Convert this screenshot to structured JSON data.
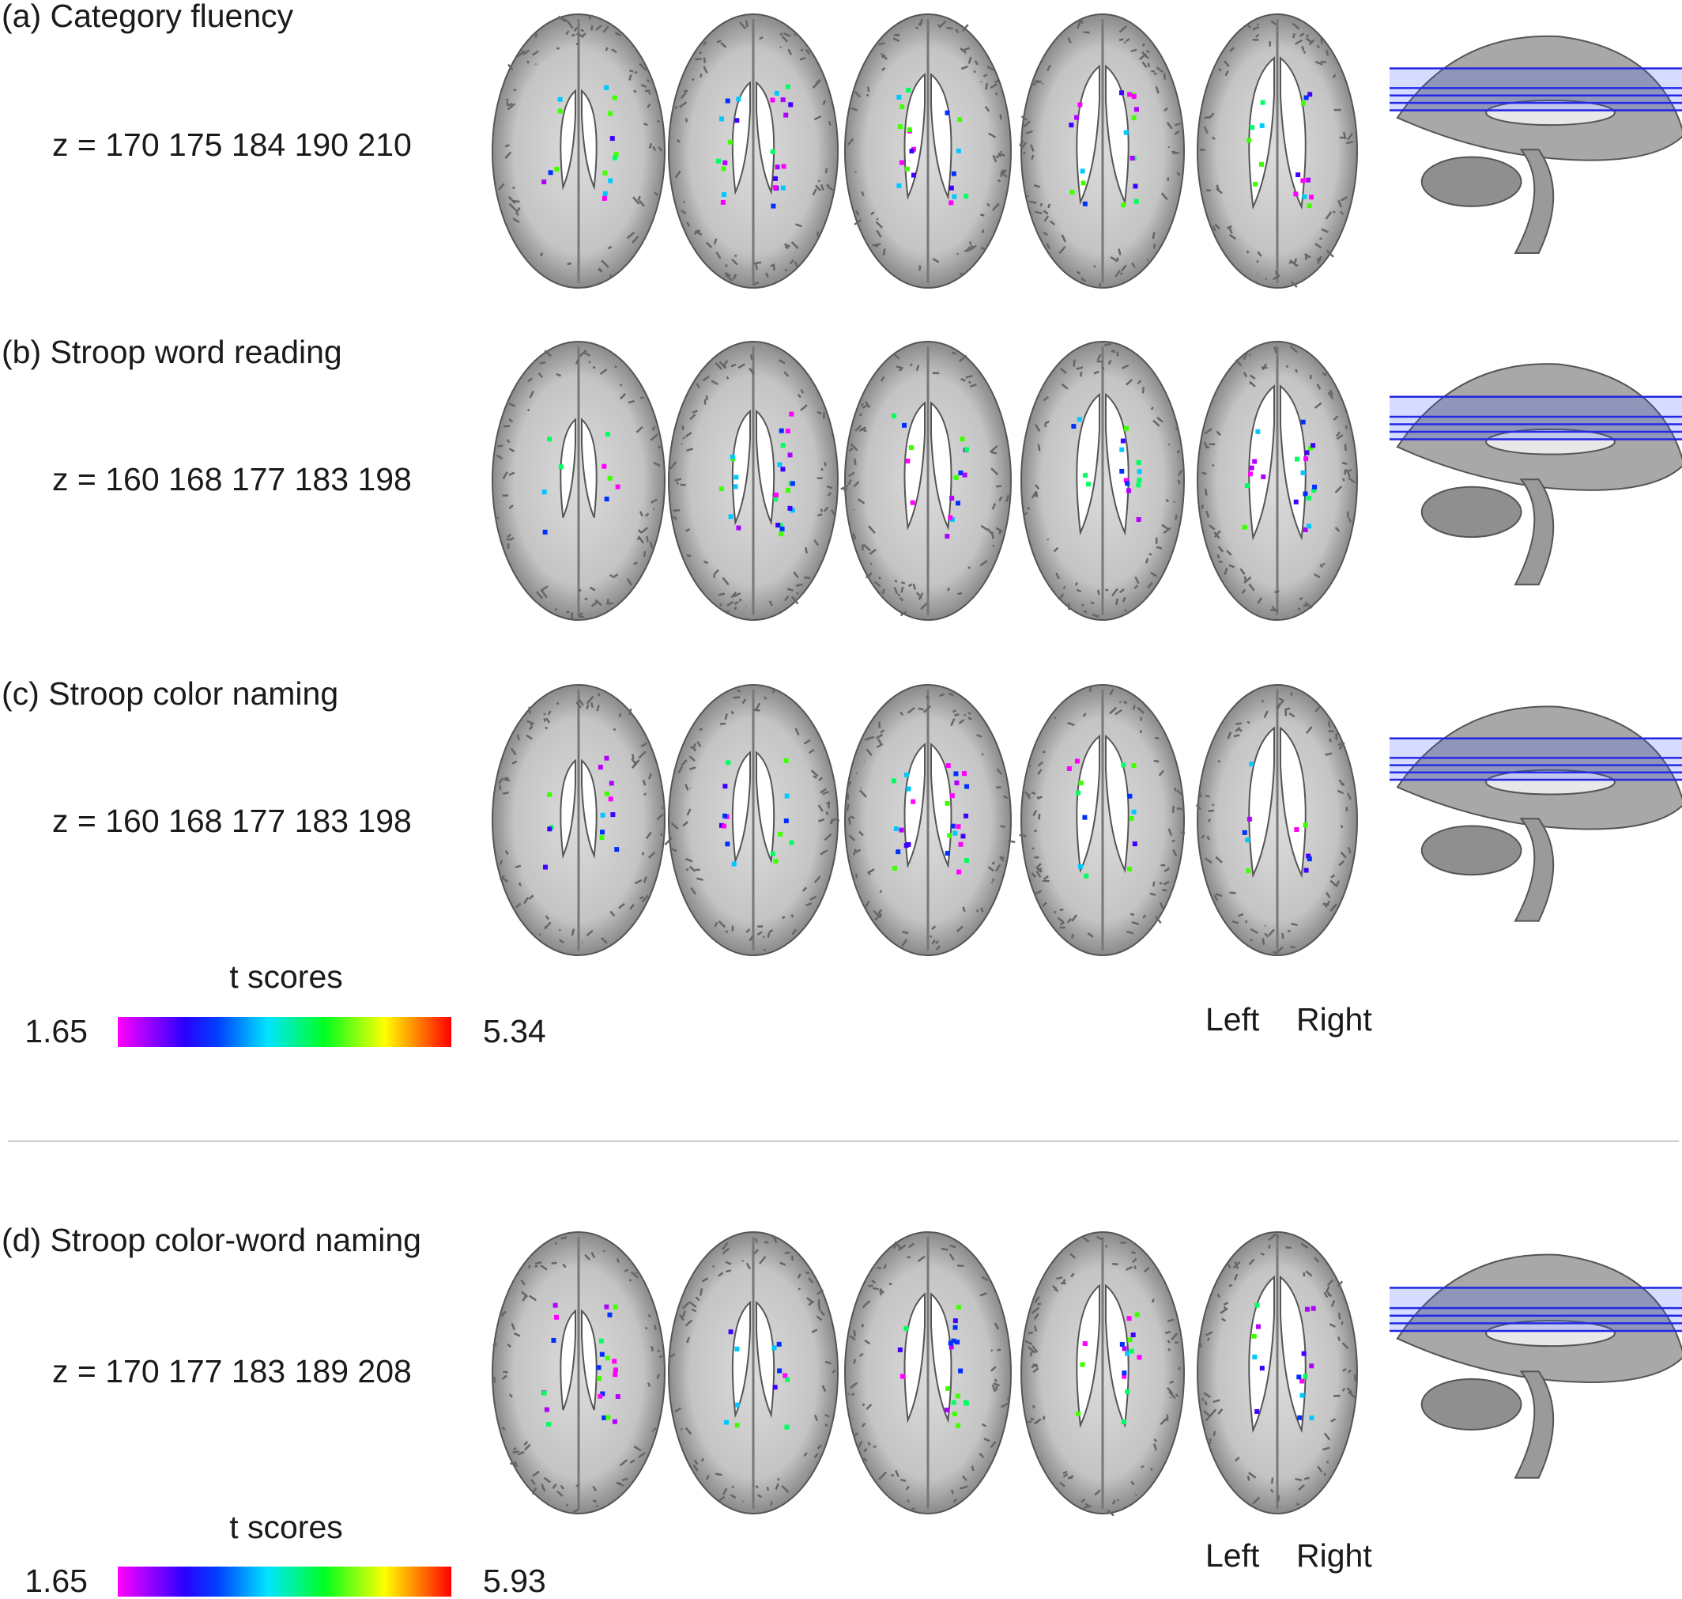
{
  "panels": [
    {
      "label": "(a) Category fluency",
      "slices": "z = 170 175 184 190 210"
    },
    {
      "label": "(b) Stroop word reading",
      "slices": "z = 160 168 177 183 198"
    },
    {
      "label": "(c) Stroop color naming",
      "slices": "z = 160 168 177 183 198"
    },
    {
      "label": "(d) Stroop color-word naming",
      "slices": "z = 170 177 183 189 208"
    }
  ],
  "legends": [
    {
      "title": "t scores",
      "min": "1.65",
      "max": "5.34",
      "left": "Left",
      "right": "Right"
    },
    {
      "title": "t scores",
      "min": "1.65",
      "max": "5.93",
      "left": "Left",
      "right": "Right"
    }
  ]
}
